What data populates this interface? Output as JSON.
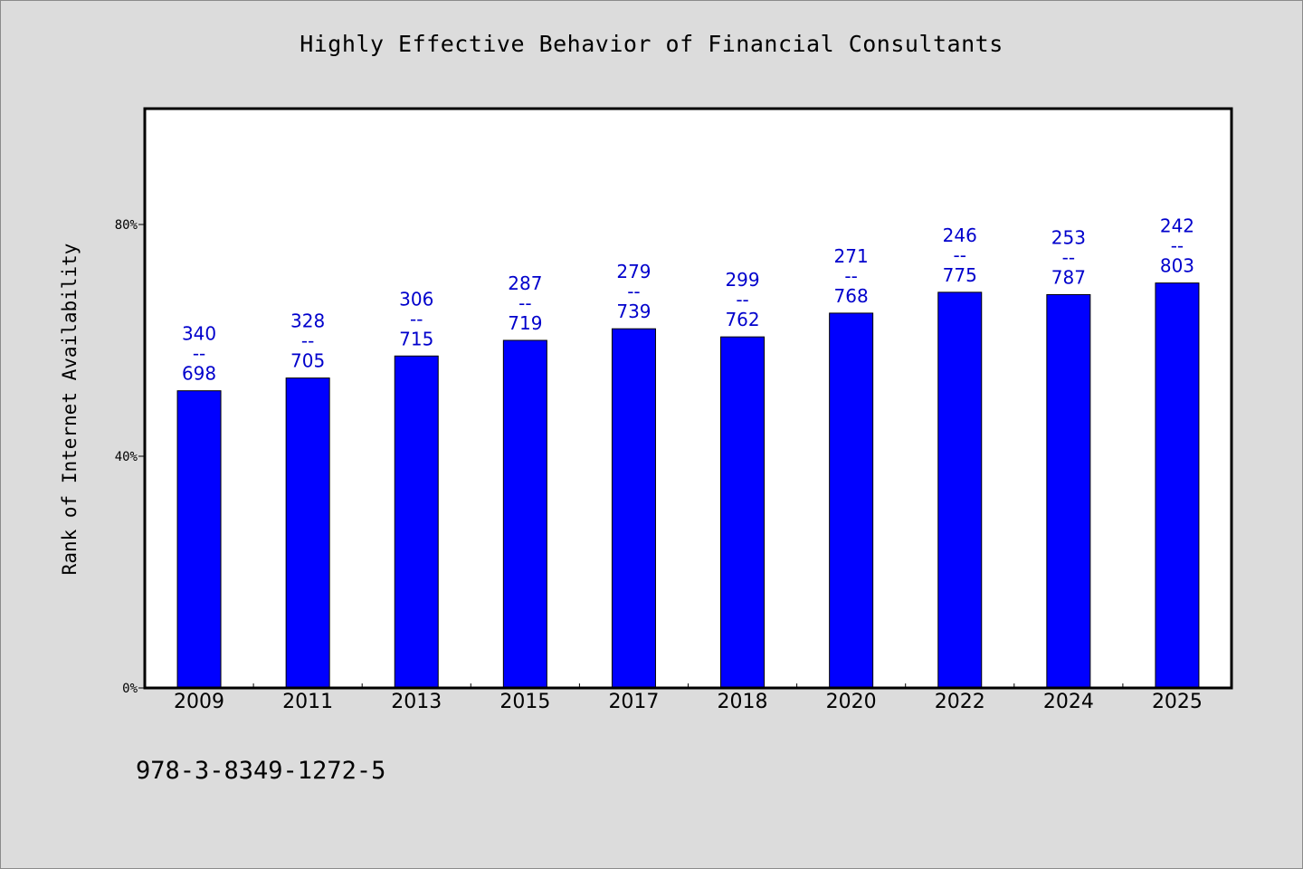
{
  "colors": {
    "background": "#dcdcdc",
    "plot_background": "#ffffff",
    "bar": "#0000ff",
    "data_label": "#0000cc",
    "axis": "#000000"
  },
  "footer": {
    "code": "978-3-8349-1272-5"
  },
  "chart_data": {
    "type": "bar",
    "title": "Highly Effective Behavior of Financial Consultants",
    "xlabel": "",
    "ylabel": "Rank of Internet Availability",
    "ylim": [
      0,
      1
    ],
    "yticks": [
      {
        "value": 0,
        "label": "0%"
      },
      {
        "value": 0.4,
        "label": "40%"
      },
      {
        "value": 0.8,
        "label": "80%"
      }
    ],
    "categories": [
      "2009",
      "2011",
      "2013",
      "2015",
      "2017",
      "2018",
      "2020",
      "2022",
      "2024",
      "2025"
    ],
    "values": [
      0.513,
      0.535,
      0.573,
      0.6,
      0.62,
      0.606,
      0.647,
      0.683,
      0.679,
      0.699
    ],
    "data_labels": [
      [
        "340",
        "--",
        "698"
      ],
      [
        "328",
        "--",
        "705"
      ],
      [
        "306",
        "--",
        "715"
      ],
      [
        "287",
        "--",
        "719"
      ],
      [
        "279",
        "--",
        "739"
      ],
      [
        "299",
        "--",
        "762"
      ],
      [
        "271",
        "--",
        "768"
      ],
      [
        "246",
        "--",
        "775"
      ],
      [
        "253",
        "--",
        "787"
      ],
      [
        "242",
        "--",
        "803"
      ]
    ],
    "grid": false,
    "legend": "none"
  }
}
